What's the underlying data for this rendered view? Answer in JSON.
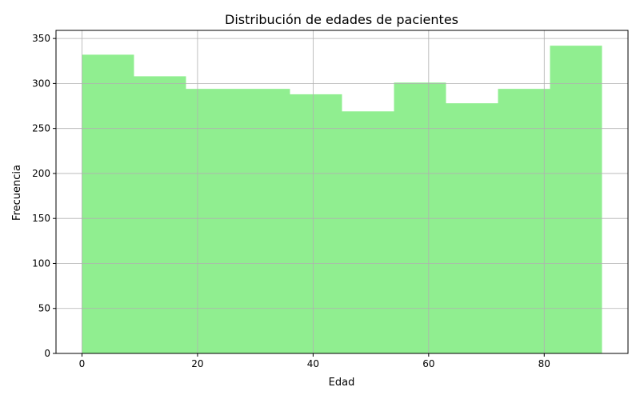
{
  "chart_data": {
    "type": "bar",
    "title": "Distribución de edades de pacientes",
    "xlabel": "Edad",
    "ylabel": "Frecuencia",
    "bins": [
      {
        "start": 0,
        "end": 9,
        "count": 332
      },
      {
        "start": 9,
        "end": 18,
        "count": 308
      },
      {
        "start": 18,
        "end": 27,
        "count": 294
      },
      {
        "start": 27,
        "end": 36,
        "count": 294
      },
      {
        "start": 36,
        "end": 45,
        "count": 288
      },
      {
        "start": 45,
        "end": 54,
        "count": 269
      },
      {
        "start": 54,
        "end": 63,
        "count": 301
      },
      {
        "start": 63,
        "end": 72,
        "count": 278
      },
      {
        "start": 72,
        "end": 81,
        "count": 294
      },
      {
        "start": 81,
        "end": 90,
        "count": 342
      }
    ],
    "xlim": [
      -4.5,
      94.5
    ],
    "ylim": [
      0,
      359
    ],
    "xticks": [
      0,
      20,
      40,
      60,
      80
    ],
    "yticks": [
      0,
      50,
      100,
      150,
      200,
      250,
      300,
      350
    ],
    "grid": true,
    "bar_color": "#90ee90",
    "grid_color": "#b0b0b0"
  }
}
